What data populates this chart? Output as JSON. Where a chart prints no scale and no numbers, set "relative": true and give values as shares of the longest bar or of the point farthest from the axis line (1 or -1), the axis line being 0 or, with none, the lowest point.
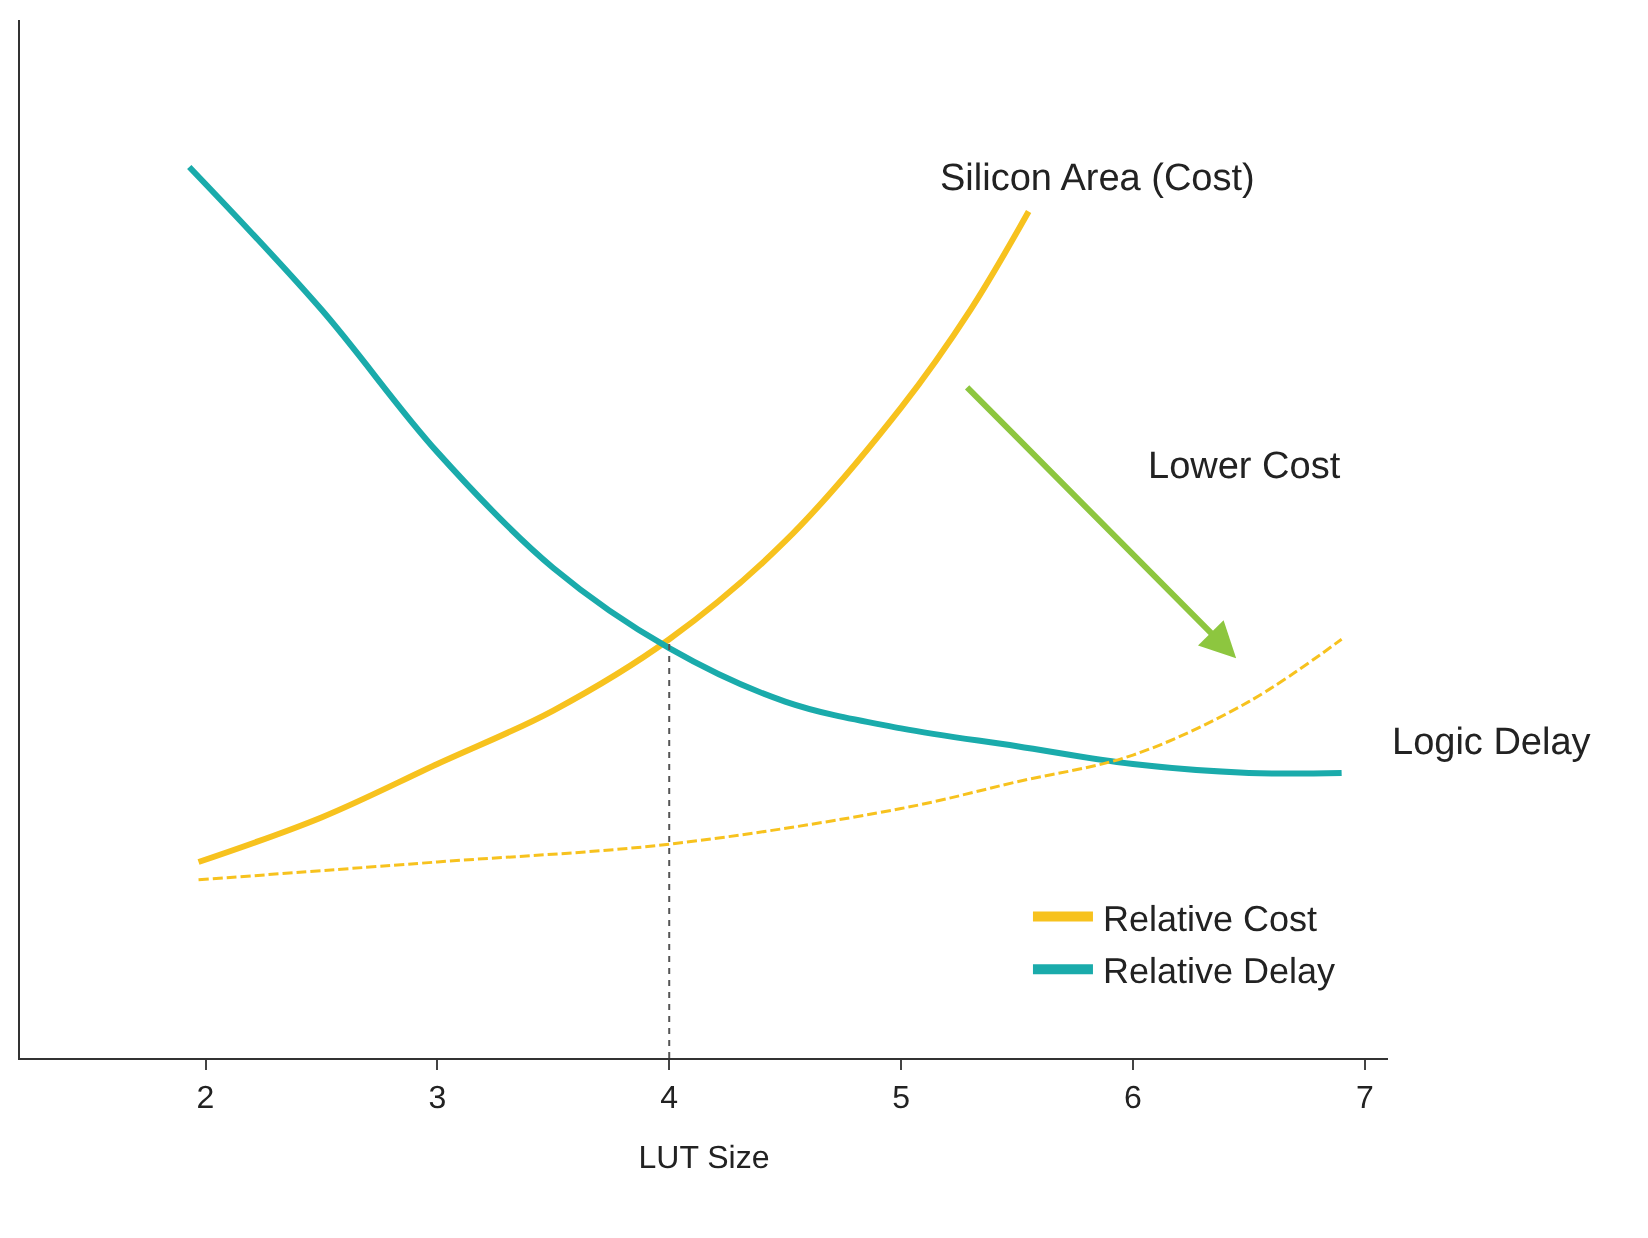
{
  "chart_data": {
    "type": "line",
    "relative": true,
    "xlabel": "LUT Size",
    "xlim": [
      1.2,
      7.1
    ],
    "xticks": [
      2,
      3,
      4,
      5,
      6,
      7
    ],
    "series": [
      {
        "name": "Relative Cost",
        "color": "#f7c21e",
        "x": [
          1.97,
          2.5,
          3,
          3.5,
          4,
          4.5,
          5,
          5.3,
          5.55
        ],
        "values": [
          0.22,
          0.27,
          0.33,
          0.39,
          0.47,
          0.58,
          0.73,
          0.84,
          0.95
        ]
      },
      {
        "name": "Relative Delay",
        "color": "#1aabab",
        "x": [
          1.93,
          2.5,
          3,
          3.5,
          4,
          4.5,
          5,
          5.5,
          6,
          6.5,
          6.9
        ],
        "values": [
          1.0,
          0.84,
          0.68,
          0.55,
          0.46,
          0.4,
          0.37,
          0.35,
          0.33,
          0.32,
          0.32
        ]
      },
      {
        "color": "#f7c21e",
        "line_style": "dashed",
        "x": [
          1.97,
          3,
          4,
          5,
          5.5,
          6,
          6.5,
          6.9
        ],
        "values": [
          0.2,
          0.22,
          0.24,
          0.28,
          0.31,
          0.34,
          0.4,
          0.47
        ]
      }
    ],
    "ref_lines": [
      {
        "axis": "x",
        "value": 4,
        "line_style": "dotted",
        "color": "#555555"
      }
    ],
    "annotations": [
      "Silicon Area (Cost)",
      "Lower Cost",
      "Logic Delay"
    ],
    "legend": "bottom right",
    "marker": "none"
  }
}
